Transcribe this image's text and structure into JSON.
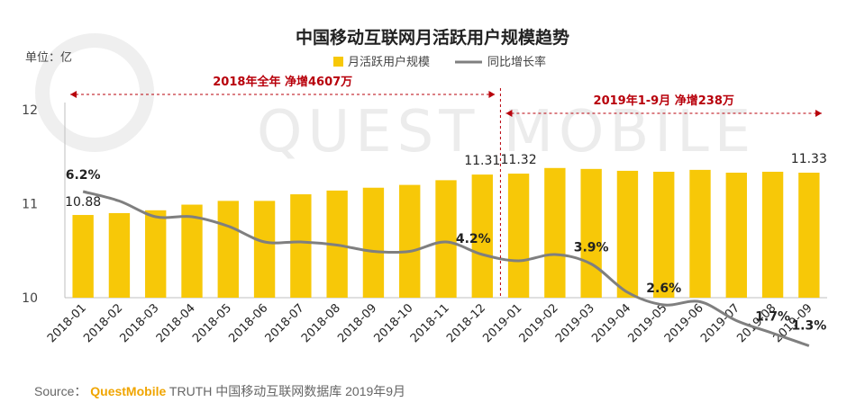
{
  "chart_data": {
    "type": "bar",
    "title": "中国移动互联网月活跃用户规模趋势",
    "unit_label": "单位：亿",
    "categories": [
      "2018-01",
      "2018-02",
      "2018-03",
      "2018-04",
      "2018-05",
      "2018-06",
      "2018-07",
      "2018-08",
      "2018-09",
      "2018-10",
      "2018-11",
      "2018-12",
      "2019-01",
      "2019-02",
      "2019-03",
      "2019-04",
      "2019-05",
      "2019-06",
      "2019-07",
      "2019-08",
      "2019-09"
    ],
    "ylim": [
      10,
      12
    ],
    "yticks": [
      "10",
      "11",
      "12"
    ],
    "series": [
      {
        "name": "月活跃用户规模",
        "type": "bar",
        "color": "#f7c808",
        "values": [
          10.88,
          10.9,
          10.93,
          10.99,
          11.03,
          11.03,
          11.1,
          11.14,
          11.17,
          11.2,
          11.25,
          11.31,
          11.32,
          11.38,
          11.37,
          11.35,
          11.34,
          11.36,
          11.33,
          11.34,
          11.33
        ]
      },
      {
        "name": "同比增长率",
        "type": "line",
        "color": "#7f7f7f",
        "values": [
          6.2,
          5.9,
          5.4,
          5.4,
          5.1,
          4.6,
          4.6,
          4.5,
          4.3,
          4.3,
          4.6,
          4.2,
          4.0,
          4.2,
          3.9,
          3.0,
          2.6,
          2.7,
          2.1,
          1.7,
          1.3
        ]
      }
    ],
    "data_labels": [
      {
        "series": 0,
        "index": 0,
        "text": "10.88"
      },
      {
        "series": 0,
        "index": 11,
        "text": "11.31"
      },
      {
        "series": 0,
        "index": 12,
        "text": "11.32"
      },
      {
        "series": 0,
        "index": 20,
        "text": "11.33"
      },
      {
        "series": 1,
        "index": 0,
        "text": "6.2%"
      },
      {
        "series": 1,
        "index": 11,
        "text": "4.2%"
      },
      {
        "series": 1,
        "index": 14,
        "text": "3.9%"
      },
      {
        "series": 1,
        "index": 16,
        "text": "2.6%"
      },
      {
        "series": 1,
        "index": 19,
        "text": "1.7%"
      },
      {
        "series": 1,
        "index": 20,
        "text": "1.3%"
      }
    ],
    "annotations": [
      {
        "text": "2018年全年 净增4607万",
        "from_index": 0,
        "to_index": 11
      },
      {
        "text": "2019年1-9月 净增238万",
        "from_index": 12,
        "to_index": 20
      }
    ],
    "legend_position": "top",
    "grid": false
  },
  "watermark": "QUEST MOBILE",
  "footer": {
    "source_label": "Source：",
    "brand": "QuestMobile",
    "text": " TRUTH 中国移动互联网数据库 2019年9月"
  }
}
